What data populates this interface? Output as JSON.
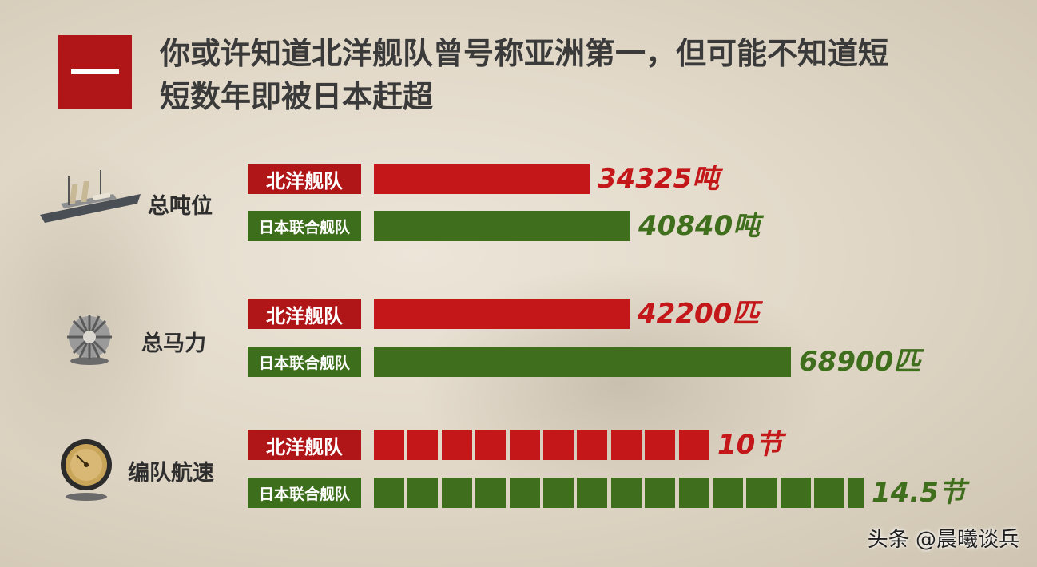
{
  "header": {
    "number": "一",
    "title_line1": "你或许知道北洋舰队曾号称亚洲第一，但可能不知道短",
    "title_line2": "短数年即被日本赶超"
  },
  "colors": {
    "beiyang": "#c3171a",
    "japan": "#3f6e1d",
    "accent": "#b01518"
  },
  "icons": [
    "warship-icon",
    "turbine-icon",
    "gauge-icon"
  ],
  "watermark": "头条 @晨曦谈兵",
  "chart_data": [
    {
      "type": "bar",
      "category": "总吨位",
      "series": [
        {
          "name": "北洋舰队",
          "value": 34325,
          "label": "34325吨"
        },
        {
          "name": "日本联合舰队",
          "value": 40840,
          "label": "40840吨"
        }
      ],
      "unit": "吨"
    },
    {
      "type": "bar",
      "category": "总马力",
      "series": [
        {
          "name": "北洋舰队",
          "value": 42200,
          "label": "42200匹"
        },
        {
          "name": "日本联合舰队",
          "value": 68900,
          "label": "68900匹"
        }
      ],
      "unit": "匹"
    },
    {
      "type": "bar",
      "category": "编队航速",
      "series": [
        {
          "name": "北洋舰队",
          "value": 10,
          "label": "10节"
        },
        {
          "name": "日本联合舰队",
          "value": 14.5,
          "label": "14.5节"
        }
      ],
      "unit": "节"
    }
  ]
}
